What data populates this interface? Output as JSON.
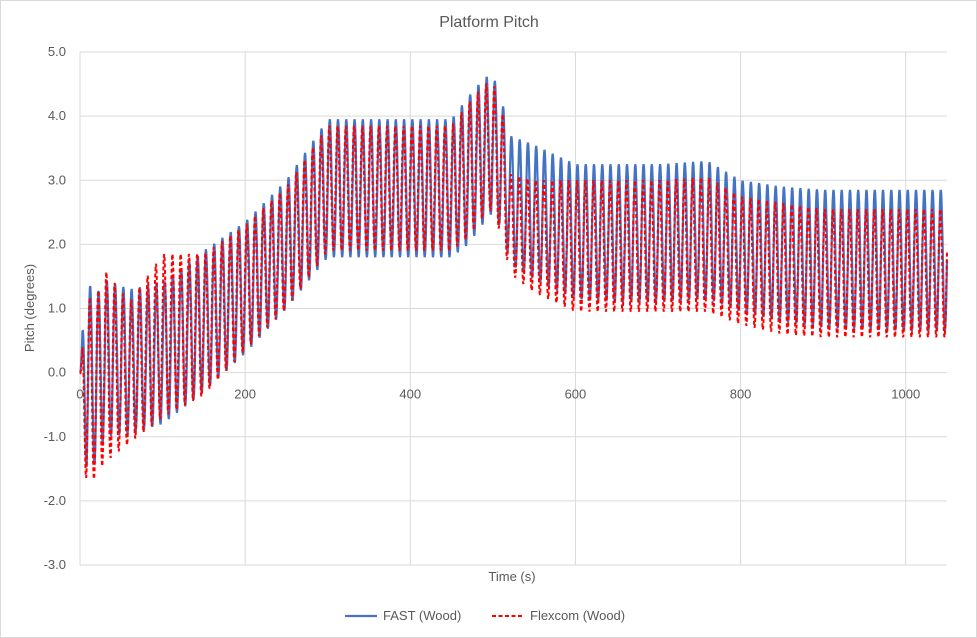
{
  "chart_data": {
    "type": "line",
    "title": "Platform Pitch",
    "xlabel": "Time (s)",
    "ylabel": "Pitch (degrees)",
    "xlim": [
      0,
      1050
    ],
    "ylim": [
      -3.0,
      5.0
    ],
    "xticks": [
      0,
      200,
      400,
      600,
      800,
      1000
    ],
    "yticks": [
      -3.0,
      -2.0,
      -1.0,
      0.0,
      1.0,
      2.0,
      3.0,
      4.0,
      5.0
    ],
    "xtick_labels": [
      "0",
      "200",
      "400",
      "600",
      "800",
      "1000"
    ],
    "ytick_labels": [
      "-3.0",
      "-2.0",
      "-1.0",
      "0.0",
      "1.0",
      "2.0",
      "3.0",
      "4.0",
      "5.0"
    ],
    "grid": true,
    "legend": "bottom",
    "oscillation_period_s": 10,
    "series": [
      {
        "name": "FAST (Wood)",
        "color": "#4472c4",
        "style": "solid",
        "envelope": {
          "t": [
            0,
            8,
            15,
            30,
            60,
            100,
            150,
            200,
            250,
            300,
            350,
            400,
            450,
            470,
            490,
            500,
            515,
            520,
            550,
            600,
            650,
            700,
            760,
            800,
            850,
            900,
            1000,
            1050
          ],
          "max": [
            0,
            1.8,
            1.1,
            1.45,
            1.3,
            1.4,
            1.9,
            2.35,
            3.0,
            3.95,
            3.95,
            3.95,
            3.95,
            4.3,
            4.6,
            4.65,
            4.05,
            3.7,
            3.55,
            3.25,
            3.25,
            3.25,
            3.3,
            3.0,
            2.9,
            2.85,
            2.85,
            2.85
          ],
          "min": [
            0,
            -1.55,
            -1.5,
            -1.0,
            -0.95,
            -0.8,
            -0.3,
            0.3,
            1.0,
            1.8,
            1.8,
            1.8,
            1.8,
            2.0,
            2.35,
            2.5,
            2.1,
            1.7,
            1.45,
            1.15,
            1.1,
            1.1,
            1.15,
            0.95,
            0.8,
            0.7,
            0.65,
            0.65
          ]
        }
      },
      {
        "name": "Flexcom (Wood)",
        "color": "#ff0000",
        "style": "dashed",
        "envelope": {
          "t": [
            0,
            8,
            15,
            30,
            60,
            100,
            150,
            200,
            250,
            300,
            350,
            400,
            450,
            470,
            490,
            500,
            515,
            520,
            550,
            600,
            650,
            700,
            760,
            800,
            850,
            900,
            1000,
            1050
          ],
          "max": [
            0,
            1.4,
            1.0,
            1.6,
            1.1,
            1.85,
            1.85,
            2.3,
            2.9,
            3.85,
            3.85,
            3.85,
            3.85,
            4.2,
            4.5,
            4.55,
            3.9,
            3.1,
            3.0,
            3.0,
            3.0,
            3.0,
            3.05,
            2.75,
            2.65,
            2.55,
            2.55,
            2.55
          ],
          "min": [
            0,
            -1.85,
            -1.7,
            -1.4,
            -1.1,
            -0.7,
            -0.35,
            0.35,
            1.0,
            1.9,
            1.9,
            1.9,
            1.9,
            2.1,
            2.45,
            2.55,
            1.9,
            1.55,
            1.25,
            0.95,
            0.95,
            0.95,
            0.95,
            0.75,
            0.6,
            0.55,
            0.55,
            0.55
          ]
        }
      }
    ]
  }
}
